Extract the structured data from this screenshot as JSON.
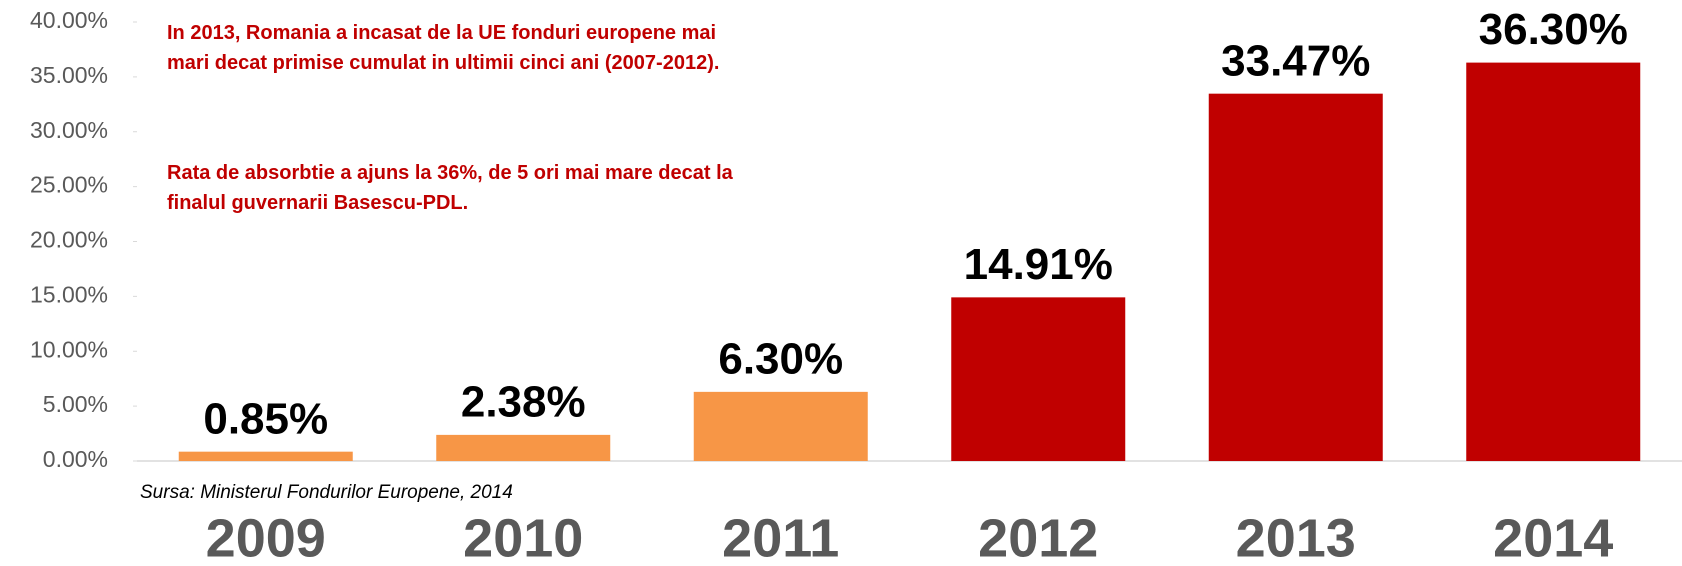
{
  "chart_data": {
    "type": "bar",
    "categories": [
      "2009",
      "2010",
      "2011",
      "2012",
      "2013",
      "2014"
    ],
    "values": [
      0.85,
      2.38,
      6.3,
      14.91,
      33.47,
      36.3
    ],
    "value_labels": [
      "0.85%",
      "2.38%",
      "6.30%",
      "14.91%",
      "33.47%",
      "36.30%"
    ],
    "colors": [
      "#f79646",
      "#f79646",
      "#f79646",
      "#c00000",
      "#c00000",
      "#c00000"
    ],
    "ylim": [
      0,
      40
    ],
    "yticks": [
      {
        "value": 0,
        "label": "0.00%"
      },
      {
        "value": 5,
        "label": "5.00%"
      },
      {
        "value": 10,
        "label": "10.00%"
      },
      {
        "value": 15,
        "label": "15.00%"
      },
      {
        "value": 20,
        "label": "20.00%"
      },
      {
        "value": 25,
        "label": "25.00%"
      },
      {
        "value": 30,
        "label": "30.00%"
      },
      {
        "value": 35,
        "label": "35.00%"
      },
      {
        "value": 40,
        "label": "40.00%"
      }
    ],
    "annotations": [
      "In 2013, Romania a incasat de la UE fonduri europene mai mari decat primise cumulat in ultimii cinci ani (2007-2012).",
      "Rata de absorbtie a ajuns la 36%, de 5 ori mai mare decat la finalul guvernarii Basescu-PDL."
    ],
    "source": "Sursa: Ministerul Fondurilor Europene, 2014"
  }
}
